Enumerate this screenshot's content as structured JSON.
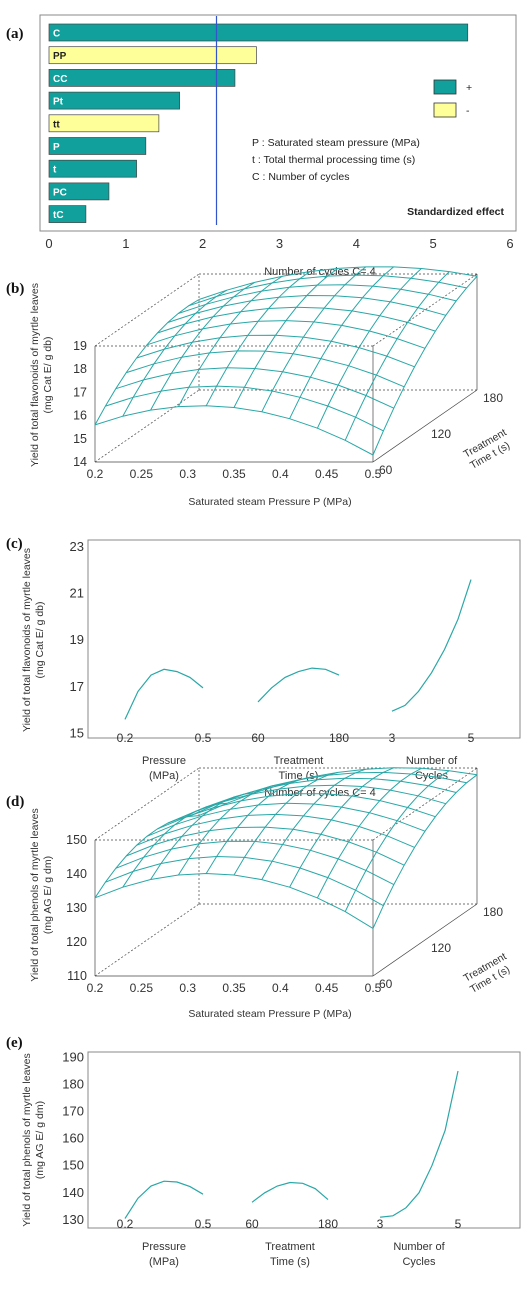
{
  "panels": {
    "a": {
      "label": "(a)"
    },
    "b": {
      "label": "(b)"
    },
    "c": {
      "label": "(c)"
    },
    "d": {
      "label": "(d)"
    },
    "e": {
      "label": "(e)"
    }
  },
  "colors": {
    "positive": "#11a09b",
    "negative": "#ffff99",
    "surface": "#2aa7a7",
    "refline": "#3355cc"
  },
  "chart_data": [
    {
      "id": "a",
      "type": "bar",
      "orientation": "horizontal",
      "categories": [
        "C",
        "PP",
        "CC",
        "Pt",
        "tt",
        "P",
        "t",
        "PC",
        "tC"
      ],
      "values": [
        5.45,
        2.7,
        2.42,
        1.7,
        1.43,
        1.26,
        1.14,
        0.78,
        0.48
      ],
      "signs": [
        "+",
        "-",
        "+",
        "+",
        "-",
        "+",
        "+",
        "+",
        "+"
      ],
      "xlim": [
        0,
        6
      ],
      "xticks": [
        "0",
        "1",
        "2",
        "3",
        "4",
        "5",
        "6"
      ],
      "reference_line": 2.18,
      "legend": [
        {
          "sign": "+",
          "label": "+"
        },
        {
          "sign": "-",
          "label": "-"
        }
      ],
      "legend_position": "right",
      "annotations": [
        "P : Saturated steam pressure (MPa)",
        "t : Total thermal processing time (s)",
        "C : Number of cycles"
      ],
      "xlabel": "Standardized effect"
    },
    {
      "id": "b",
      "type": "surface",
      "title": "Number of cycles C= 4",
      "xlabel": "Saturated steam Pressure P (MPa)",
      "ylabel": "Treatment Time  t (s)",
      "zlabel": "Yield of total flavonoids of myrtle leaves (mg Cat E/ g db)",
      "xticks": [
        "0.2",
        "0.25",
        "0.3",
        "0.35",
        "0.4",
        "0.45",
        "0.5"
      ],
      "yticks": [
        "60",
        "120",
        "180"
      ],
      "zticks": [
        "14",
        "15",
        "16",
        "17",
        "18",
        "19"
      ],
      "xlim": [
        0.2,
        0.5
      ],
      "ylim": [
        60,
        180
      ],
      "zlim": [
        14,
        19
      ],
      "corners": {
        "p0.2_t60": 15.6,
        "p0.5_t60": 14.3,
        "p0.2_t180": 17.9,
        "p0.5_t180": 18.9
      }
    },
    {
      "id": "c",
      "type": "line",
      "ylabel": "Yield of total flavonoids of myrtle leaves (mg Cat E/ g db)",
      "yticks": [
        "15",
        "17",
        "19",
        "21",
        "23"
      ],
      "ylim": [
        14.8,
        23.3
      ],
      "series": [
        {
          "name": "Pressure (MPa)",
          "x": [
            0.2,
            0.25,
            0.3,
            0.35,
            0.4,
            0.45,
            0.5
          ],
          "y": [
            15.6,
            16.8,
            17.5,
            17.75,
            17.65,
            17.4,
            16.95
          ]
        },
        {
          "name": "Treatment Time (s)",
          "x": [
            60,
            80,
            100,
            120,
            140,
            160,
            180
          ],
          "y": [
            16.35,
            16.95,
            17.4,
            17.65,
            17.8,
            17.75,
            17.5
          ]
        },
        {
          "name": "Number of Cycles",
          "x": [
            3,
            3.33,
            3.67,
            4,
            4.33,
            4.67,
            5
          ],
          "y": [
            15.95,
            16.2,
            16.8,
            17.6,
            18.6,
            19.9,
            21.6
          ]
        }
      ],
      "group_labels": [
        {
          "ticks": [
            "0.2",
            "0.5"
          ],
          "line1": "Pressure",
          "line2": "(MPa)"
        },
        {
          "ticks": [
            "60",
            "180"
          ],
          "line1": "Treatment",
          "line2": "Time  (s)"
        },
        {
          "ticks": [
            "3",
            "5"
          ],
          "line1": "Number of",
          "line2": "Cycles"
        }
      ]
    },
    {
      "id": "d",
      "type": "surface",
      "title": "Number of cycles C= 4",
      "xlabel": "Saturated steam Pressure P (MPa)",
      "ylabel": "Treatment Time  t (s)",
      "zlabel": "Yield of total phenols of myrtle leaves (mg AG E/ g dm)",
      "xticks": [
        "0.2",
        "0.25",
        "0.3",
        "0.35",
        "0.4",
        "0.45",
        "0.5"
      ],
      "yticks": [
        "60",
        "120",
        "180"
      ],
      "zticks": [
        "110",
        "120",
        "130",
        "140",
        "150"
      ],
      "xlim": [
        0.2,
        0.5
      ],
      "ylim": [
        60,
        180
      ],
      "zlim": [
        110,
        150
      ],
      "corners": {
        "p0.2_t60": 133,
        "p0.5_t60": 124,
        "p0.2_t180": 136,
        "p0.5_t180": 148
      }
    },
    {
      "id": "e",
      "type": "line",
      "ylabel": "Yield of total phenols of myrtle leaves (mg AG E/ g dm)",
      "yticks": [
        "130",
        "140",
        "150",
        "160",
        "170",
        "180",
        "190"
      ],
      "ylim": [
        127,
        192
      ],
      "series": [
        {
          "name": "Pressure (MPa)",
          "x": [
            0.2,
            0.25,
            0.3,
            0.35,
            0.4,
            0.45,
            0.5
          ],
          "y": [
            130.5,
            138,
            142.5,
            144.3,
            144,
            142.3,
            139.5
          ]
        },
        {
          "name": "Treatment Time (s)",
          "x": [
            60,
            80,
            100,
            120,
            140,
            160,
            180
          ],
          "y": [
            136.5,
            140,
            142.5,
            143.8,
            143.5,
            141.5,
            137.5
          ]
        },
        {
          "name": "Number of Cycles",
          "x": [
            3,
            3.33,
            3.67,
            4,
            4.33,
            4.67,
            5
          ],
          "y": [
            131,
            131.5,
            134.5,
            140,
            150,
            163,
            185
          ]
        }
      ],
      "group_labels": [
        {
          "ticks": [
            "0.2",
            "0.5"
          ],
          "line1": "Pressure",
          "line2": "(MPa)"
        },
        {
          "ticks": [
            "60",
            "180"
          ],
          "line1": "Treatment",
          "line2": "Time  (s)"
        },
        {
          "ticks": [
            "3",
            "5"
          ],
          "line1": "Number of",
          "line2": "Cycles"
        }
      ]
    }
  ]
}
